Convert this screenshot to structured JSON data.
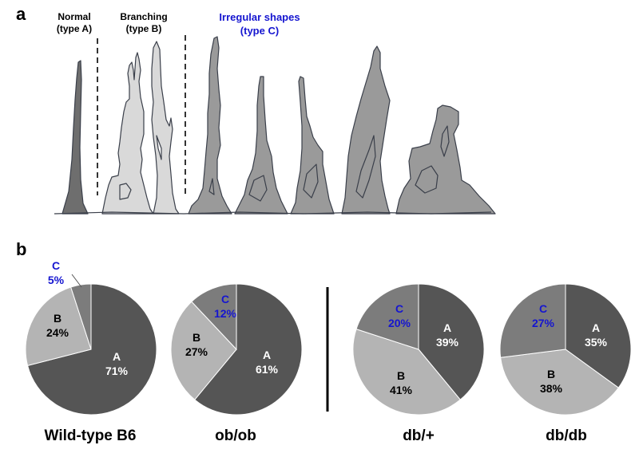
{
  "panels": {
    "a": "a",
    "b": "b"
  },
  "panel_a": {
    "normal_label_1": "Normal",
    "normal_label_2": "(type A)",
    "branching_label_1": "Branching",
    "branching_label_2": "(type B)",
    "irregular_label_1": "Irregular shapes",
    "irregular_label_2": "(type C)",
    "colors": {
      "type_a": "#6e6e6e",
      "type_b": "#d9d9d9",
      "type_c": "#9a9a9a",
      "outline": "#3a3f4a",
      "label_blue": "#1515d0"
    }
  },
  "colors": {
    "A": "#555555",
    "B": "#b4b4b4",
    "C": "#7c7c7c",
    "label_white": "#ffffff",
    "label_dark": "#000000",
    "label_blue": "#1515d0"
  },
  "chart_data": [
    {
      "type": "pie",
      "title": "Wild-type B6",
      "slices": [
        {
          "label": "A",
          "value": 71,
          "text": "71%"
        },
        {
          "label": "B",
          "value": 24,
          "text": "24%"
        },
        {
          "label": "C",
          "value": 5,
          "text": "5%"
        }
      ]
    },
    {
      "type": "pie",
      "title": "ob/ob",
      "slices": [
        {
          "label": "A",
          "value": 61,
          "text": "61%"
        },
        {
          "label": "B",
          "value": 27,
          "text": "27%"
        },
        {
          "label": "C",
          "value": 12,
          "text": "12%"
        }
      ]
    },
    {
      "type": "pie",
      "title": "db/+",
      "slices": [
        {
          "label": "A",
          "value": 39,
          "text": "39%"
        },
        {
          "label": "B",
          "value": 41,
          "text": "41%"
        },
        {
          "label": "C",
          "value": 20,
          "text": "20%"
        }
      ]
    },
    {
      "type": "pie",
      "title": "db/db",
      "slices": [
        {
          "label": "A",
          "value": 35,
          "text": "35%"
        },
        {
          "label": "B",
          "value": 38,
          "text": "38%"
        },
        {
          "label": "C",
          "value": 27,
          "text": "27%"
        }
      ]
    }
  ]
}
